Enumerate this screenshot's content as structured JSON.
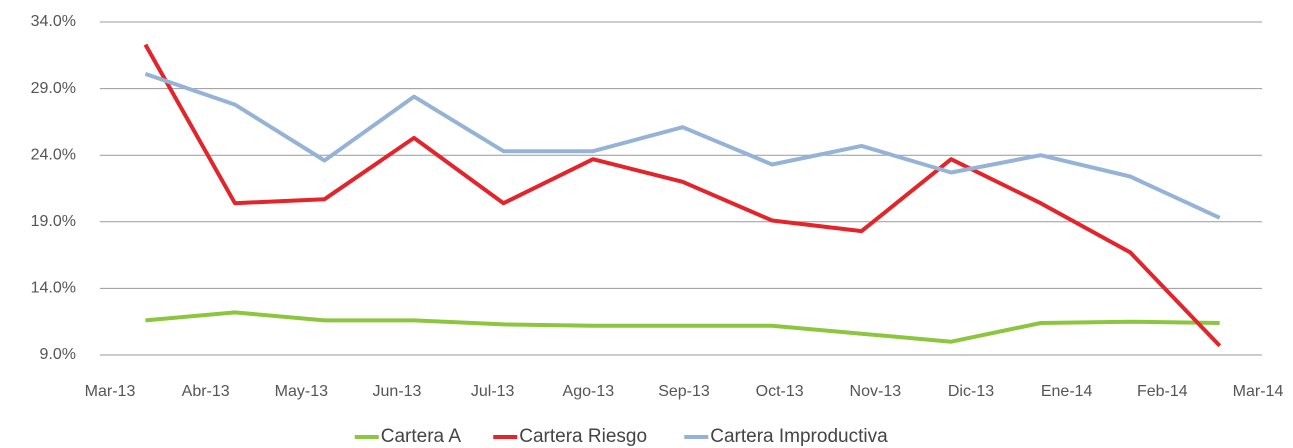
{
  "chart_data": {
    "type": "line",
    "categories": [
      "Mar-13",
      "Abr-13",
      "May-13",
      "Jun-13",
      "Jul-13",
      "Ago-13",
      "Sep-13",
      "Oct-13",
      "Nov-13",
      "Dic-13",
      "Ene-14",
      "Feb-14",
      "Mar-14"
    ],
    "series": [
      {
        "name": "Cartera A",
        "color": "#8cc63f",
        "values": [
          11.6,
          12.2,
          11.6,
          11.6,
          11.3,
          11.2,
          11.2,
          11.2,
          10.6,
          10.0,
          11.4,
          11.5,
          11.4
        ]
      },
      {
        "name": "Cartera Riesgo",
        "color": "#e3242b",
        "values": [
          32.3,
          20.4,
          20.7,
          25.3,
          20.4,
          23.7,
          22.0,
          19.1,
          18.3,
          23.7,
          20.4,
          16.7,
          9.7
        ]
      },
      {
        "name": "Cartera Improductiva",
        "color": "#95b3d7",
        "values": [
          30.1,
          27.8,
          23.6,
          28.4,
          24.3,
          24.3,
          26.1,
          23.3,
          24.7,
          22.7,
          24.0,
          22.4,
          19.3
        ]
      }
    ],
    "ylim": [
      9.0,
      34.0
    ],
    "yticks": [
      {
        "value": 9.0,
        "label": "9.0%"
      },
      {
        "value": 14.0,
        "label": "14.0%"
      },
      {
        "value": 19.0,
        "label": "19.0%"
      },
      {
        "value": 24.0,
        "label": "24.0%"
      },
      {
        "value": 29.0,
        "label": "29.0%"
      },
      {
        "value": 34.0,
        "label": "34.0%"
      }
    ],
    "grid": true,
    "legend": "bottom"
  }
}
